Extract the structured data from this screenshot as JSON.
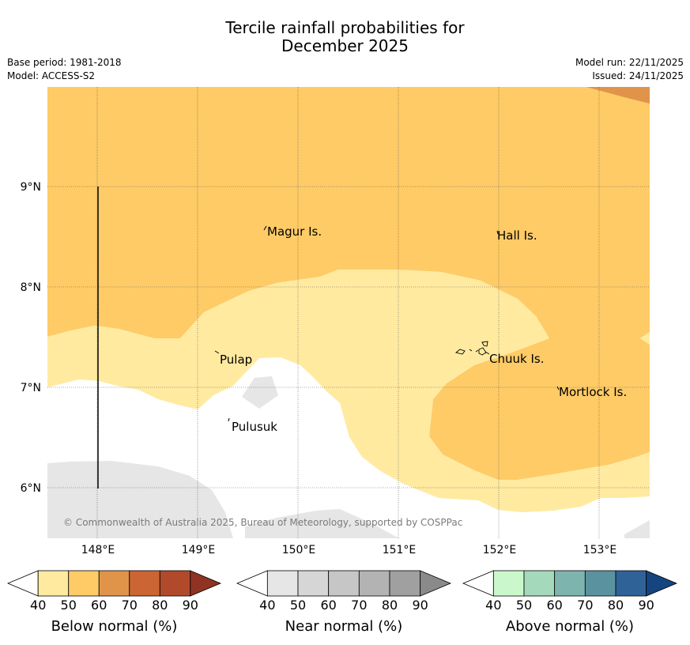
{
  "title": {
    "line1": "Tercile rainfall probabilities for",
    "line2": "December 2025"
  },
  "meta": {
    "base_period": "Base period: 1981-2018",
    "model": "Model: ACCESS-S2",
    "model_run": "Model run: 22/11/2025",
    "issued": "Issued: 24/11/2025"
  },
  "map": {
    "lat_labels": [
      "9°N",
      "8°N",
      "7°N",
      "6°N"
    ],
    "lon_labels": [
      "148°E",
      "149°E",
      "150°E",
      "151°E",
      "152°E",
      "153°E"
    ],
    "places": [
      {
        "name": "Magur Is."
      },
      {
        "name": "Hall Is."
      },
      {
        "name": "Pulap"
      },
      {
        "name": "Chuuk Is."
      },
      {
        "name": "Mortlock Is."
      },
      {
        "name": "Pulusuk"
      }
    ],
    "copyright": "© Commonwealth of Australia 2025, Bureau of Meteorology, supported by COSPPac"
  },
  "colorbars": [
    {
      "label": "Below normal (%)",
      "ticks": [
        "40",
        "50",
        "60",
        "70",
        "80",
        "90"
      ],
      "colors": [
        "#ffeaa0",
        "#fecb66",
        "#e0944a",
        "#cb6534",
        "#b04a2a",
        "#8f3322"
      ]
    },
    {
      "label": "Near normal (%)",
      "ticks": [
        "40",
        "50",
        "60",
        "70",
        "80",
        "90"
      ],
      "colors": [
        "#e6e6e6",
        "#d6d6d6",
        "#c6c6c6",
        "#b3b3b3",
        "#a0a0a0",
        "#8a8a8a"
      ]
    },
    {
      "label": "Above normal (%)",
      "ticks": [
        "40",
        "50",
        "60",
        "70",
        "80",
        "90"
      ],
      "colors": [
        "#caf8cc",
        "#a4d9bc",
        "#7eb4ae",
        "#5a92a0",
        "#2f6398",
        "#15457e"
      ]
    }
  ]
}
